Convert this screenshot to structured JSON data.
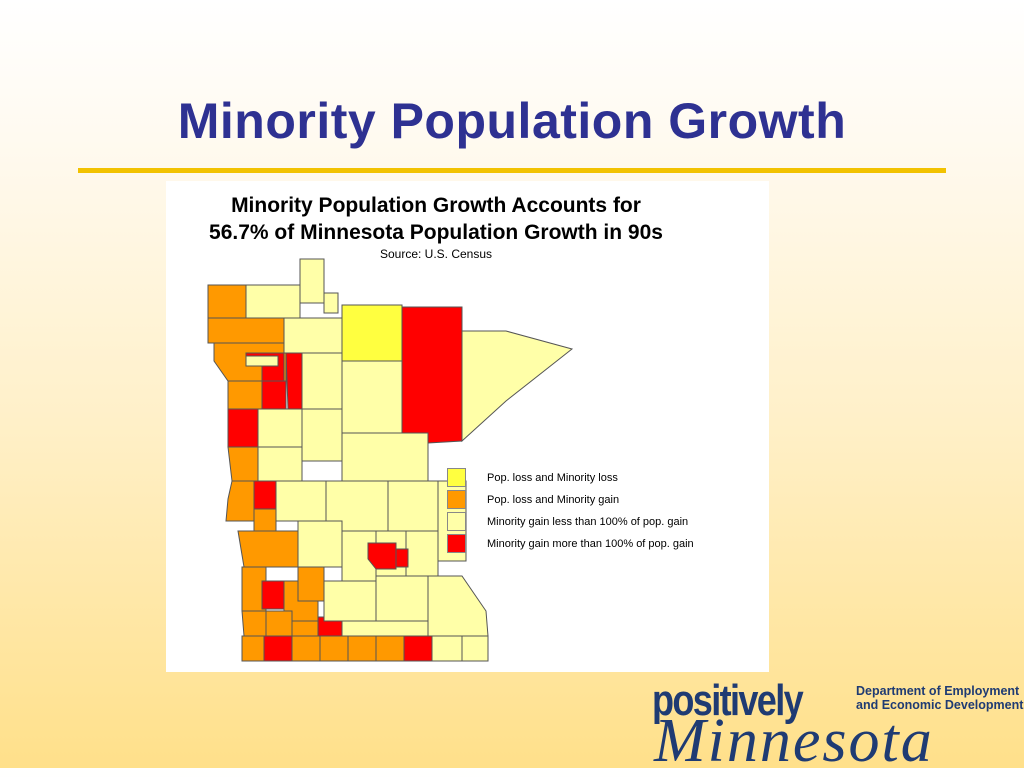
{
  "slide": {
    "title": "Minority Population Growth"
  },
  "map": {
    "heading_line1": "Minority Population Growth Accounts for",
    "heading_line2": "56.7% of Minnesota Population Growth in 90s",
    "source": "Source: U.S. Census",
    "region": "Minnesota counties",
    "colors": {
      "pop_loss_minority_loss": "#ffff40",
      "pop_loss_minority_gain": "#ff9900",
      "minority_gain_lt_100": "#ffffa8",
      "minority_gain_gt_100": "#ff0000",
      "county_border": "#555555"
    },
    "legend": [
      {
        "label": "Pop. loss and Minority loss",
        "color": "#ffff40"
      },
      {
        "label": "Pop. loss and Minority gain",
        "color": "#ff9900"
      },
      {
        "label": "Minority gain less than 100% of pop. gain",
        "color": "#ffffa8"
      },
      {
        "label": "Minority gain more than 100% of pop. gain",
        "color": "#ff0000"
      }
    ]
  },
  "logo": {
    "word1": "positively",
    "word2": "Minnesota",
    "dept_line1": "Department of Employment",
    "dept_line2": "and Economic Development"
  }
}
